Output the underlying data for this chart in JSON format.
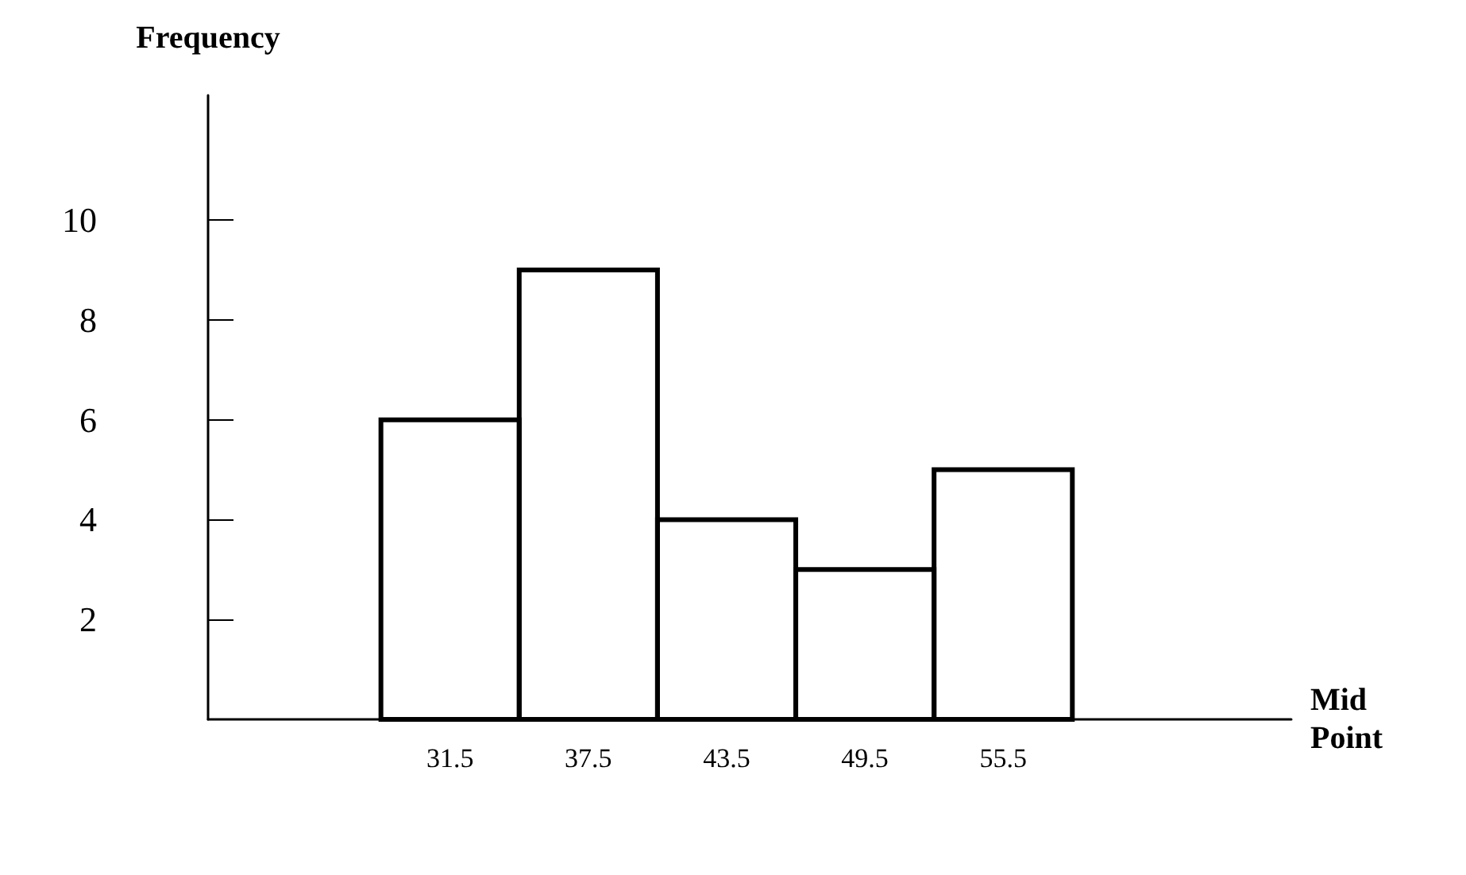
{
  "chart_data": {
    "type": "histogram",
    "xlabel": "Mid\nPoint",
    "ylabel": "Frequency",
    "bins": [
      28.5,
      34.5,
      40.5,
      46.5,
      52.5,
      58.5
    ],
    "values": [
      6,
      9,
      4,
      3,
      5
    ],
    "color": "#000000",
    "xlim": [
      21,
      68
    ],
    "xticks": [
      31.5,
      37.5,
      43.5,
      49.5,
      55.5
    ],
    "ylim": [
      0,
      12.5
    ],
    "yticks": [
      2,
      4,
      6,
      8,
      10
    ],
    "grid": false
  }
}
